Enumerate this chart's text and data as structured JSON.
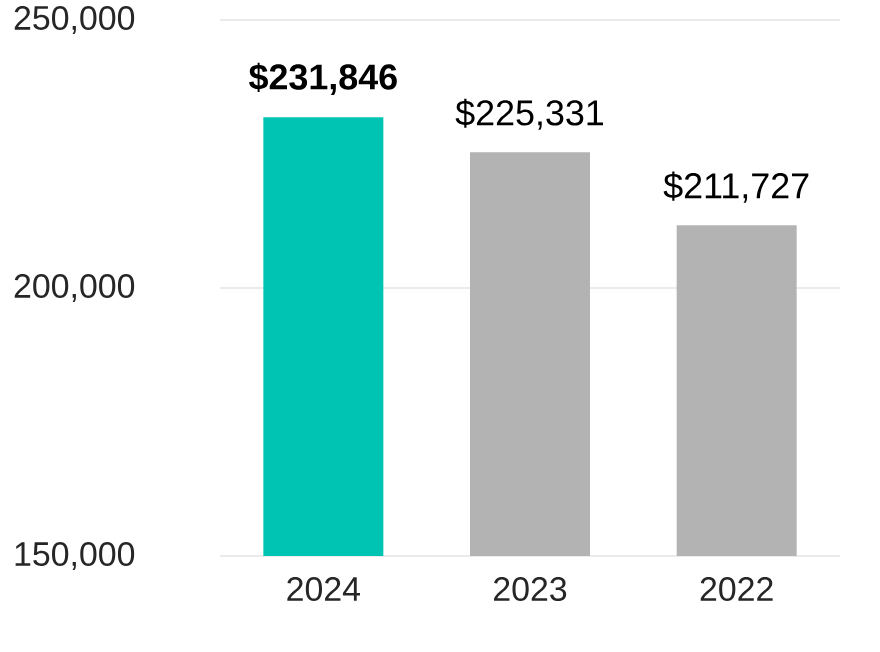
{
  "chart_data": {
    "type": "bar",
    "categories": [
      "2024",
      "2023",
      "2022"
    ],
    "values": [
      231846,
      225331,
      211727
    ],
    "colors": [
      "#00c4b3",
      "#b3b3b3",
      "#b3b3b3"
    ],
    "value_labels": [
      "**$231,846**",
      "$225,331",
      "$211,727"
    ],
    "ylim": [
      150000,
      250000
    ],
    "yticks": [
      {
        "value": 150000,
        "label": "150,000"
      },
      {
        "value": 200000,
        "label": "200,000"
      },
      {
        "value": 250000,
        "label": "250,000"
      }
    ],
    "grid": "y"
  }
}
